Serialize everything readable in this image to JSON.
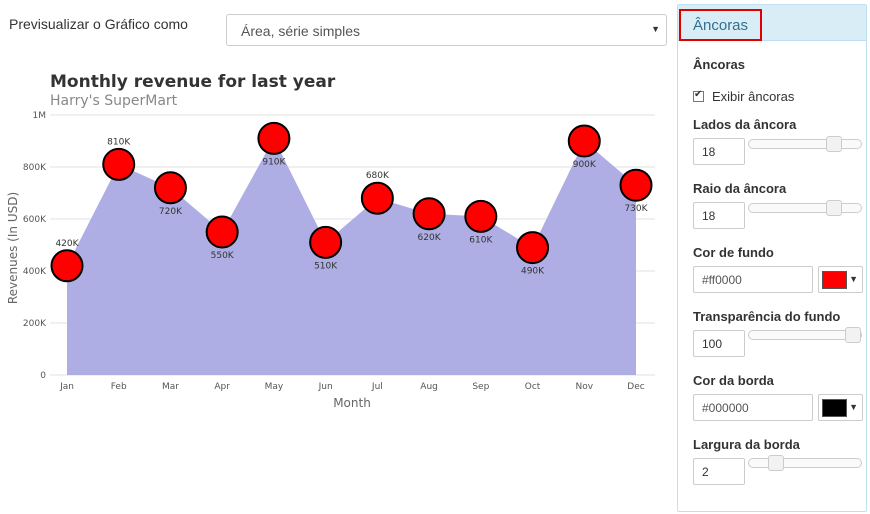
{
  "preview": {
    "label": "Previsualizar o Gráfico como",
    "selected": "Área, série simples"
  },
  "chart_data": {
    "type": "area",
    "title": "Monthly revenue for last year",
    "subtitle": "Harry's SuperMart",
    "xlabel": "Month",
    "ylabel": "Revenues (In USD)",
    "categories": [
      "Jan",
      "Feb",
      "Mar",
      "Apr",
      "May",
      "Jun",
      "Jul",
      "Aug",
      "Sep",
      "Oct",
      "Nov",
      "Dec"
    ],
    "values": [
      420000,
      810000,
      720000,
      550000,
      910000,
      510000,
      680000,
      620000,
      610000,
      490000,
      900000,
      730000
    ],
    "value_labels": [
      "420K",
      "810K",
      "720K",
      "550K",
      "910K",
      "510K",
      "680K",
      "620K",
      "610K",
      "490K",
      "900K",
      "730K"
    ],
    "ylim": [
      0,
      1000000
    ],
    "yticks": [
      0,
      200000,
      400000,
      600000,
      800000,
      1000000
    ],
    "ytick_labels": [
      "0",
      "200K",
      "400K",
      "600K",
      "800K",
      "1M"
    ],
    "grid": true,
    "area_color": "#aeaee4",
    "anchor_fill": "#ff0000",
    "anchor_border": "#000000"
  },
  "panel": {
    "tab_label": "Âncoras",
    "section_title": "Âncoras",
    "show_anchors_label": "Exibir âncoras",
    "show_anchors": true,
    "sides_label": "Lados da âncora",
    "sides_value": "18",
    "sides_fraction": 0.8,
    "radius_label": "Raio da âncora",
    "radius_value": "18",
    "radius_fraction": 0.8,
    "bg_color_label": "Cor de fundo",
    "bg_color_value": "#ff0000",
    "bg_color": "#ff0000",
    "bg_alpha_label": "Transparência do fundo",
    "bg_alpha_value": "100",
    "bg_alpha_fraction": 1.0,
    "border_color_label": "Cor da borda",
    "border_color_value": "#000000",
    "border_color": "#000000",
    "border_width_label": "Largura da borda",
    "border_width_value": "2",
    "border_width_fraction": 0.2
  }
}
